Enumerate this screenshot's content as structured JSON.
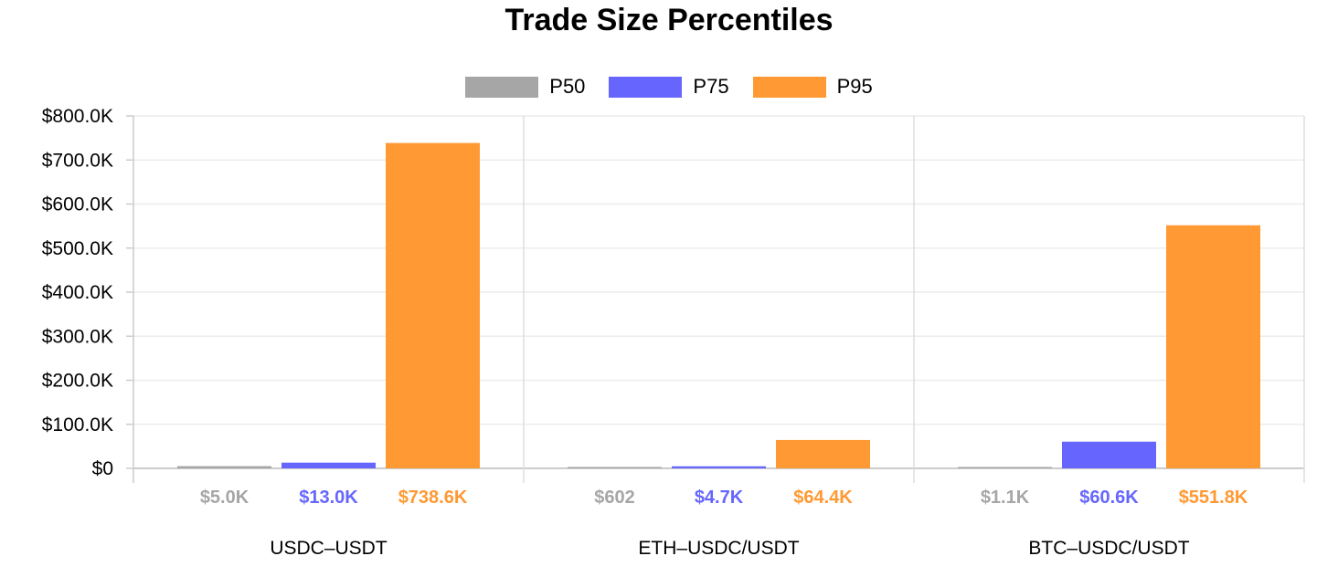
{
  "chart_data": {
    "type": "bar",
    "title": "Trade Size Percentiles",
    "categories": [
      "USDC–USDT",
      "ETH–USDC/USDT",
      "BTC–USDC/USDT"
    ],
    "series": [
      {
        "name": "P50",
        "color": "#a6a6a6",
        "values": [
          5000,
          602,
          1100
        ],
        "labels": [
          "$5.0K",
          "$602",
          "$1.1K"
        ]
      },
      {
        "name": "P75",
        "color": "#6666ff",
        "values": [
          13000,
          4700,
          60600
        ],
        "labels": [
          "$13.0K",
          "$4.7K",
          "$60.6K"
        ]
      },
      {
        "name": "P95",
        "color": "#ff9933",
        "values": [
          738600,
          64400,
          551800
        ],
        "labels": [
          "$738.6K",
          "$64.4K",
          "$551.8K"
        ]
      }
    ],
    "ylim": [
      0,
      800000
    ],
    "yticks": [
      0,
      100000,
      200000,
      300000,
      400000,
      500000,
      600000,
      700000,
      800000
    ],
    "ytick_labels": [
      "$0",
      "$100.0K",
      "$200.0K",
      "$300.0K",
      "$400.0K",
      "$500.0K",
      "$600.0K",
      "$700.0K",
      "$800.0K"
    ],
    "grid": true,
    "legend": "top-center"
  }
}
